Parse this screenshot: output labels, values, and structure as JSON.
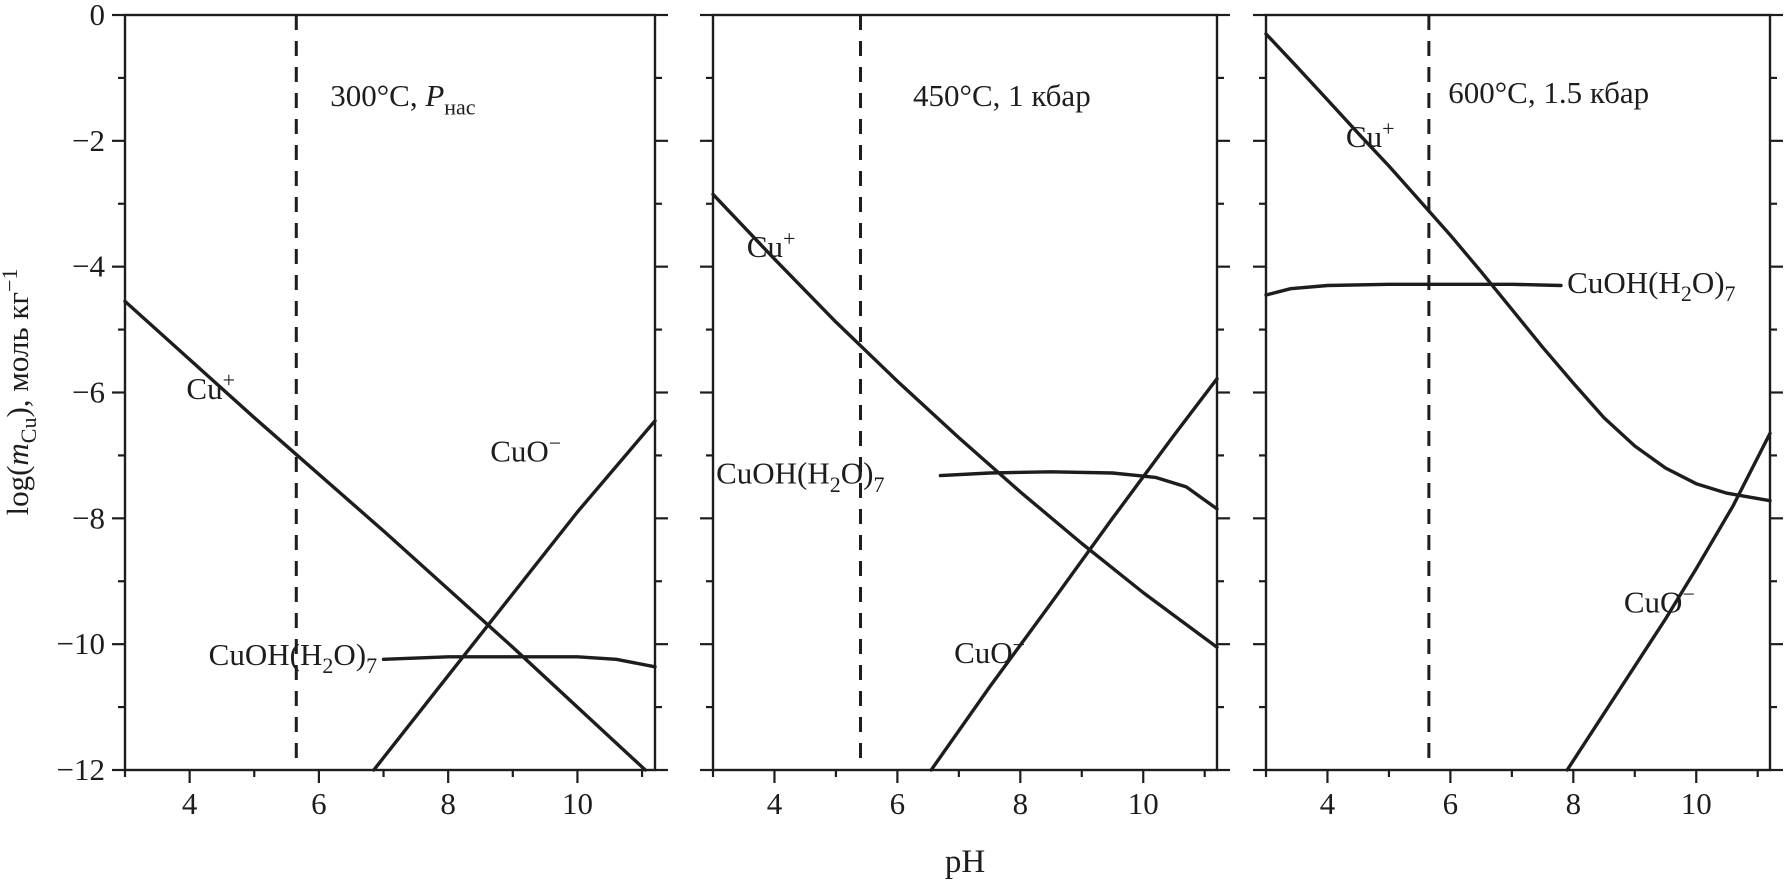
{
  "figure": {
    "background": "#ffffff",
    "line_color": "#1d1d1d",
    "x_axis_label": "pH",
    "y_axis_label_plain": "log(mCu), моль кг−1",
    "y_axis_label_parts": [
      [
        "log(",
        "n"
      ],
      [
        "m",
        "i"
      ],
      [
        "Cu",
        "sub"
      ],
      [
        "), моль кг",
        "n"
      ],
      [
        "−1",
        "sup"
      ]
    ]
  },
  "chart_data": {
    "type": "line",
    "xlabel": "pH",
    "ylabel": "log(m_Cu), моль кг^-1",
    "xlim": [
      3,
      11.2
    ],
    "ylim": [
      -12,
      0
    ],
    "grid": false,
    "legend": "none (labels placed next to curves)",
    "xticks": {
      "values": [
        4,
        6,
        8,
        10
      ],
      "labels": [
        "4",
        "6",
        "8",
        "10"
      ]
    },
    "yticks": {
      "values": [
        0,
        -2,
        -4,
        -6,
        -8,
        -10,
        -12
      ],
      "labels": [
        "0",
        "−2",
        "−4",
        "−6",
        "−8",
        "−10",
        "−12"
      ]
    },
    "panels": [
      {
        "title_plain": "300°C, Pнас",
        "title_parts": [
          [
            "300°C, ",
            "n"
          ],
          [
            "P",
            "i"
          ],
          [
            "нас",
            "sub"
          ]
        ],
        "title_x": 7.3,
        "title_y": -1.45,
        "dashed_x": 5.65,
        "series": [
          {
            "name": "Cu⁺",
            "slug": "cu-plus",
            "points": [
              [
                3,
                -4.55
              ],
              [
                5,
                -6.4
              ],
              [
                7,
                -8.2
              ],
              [
                9,
                -10.05
              ],
              [
                11.05,
                -12
              ]
            ]
          },
          {
            "name": "CuO⁻",
            "slug": "cuo-minus",
            "points": [
              [
                6.85,
                -12
              ],
              [
                8,
                -10.5
              ],
              [
                9,
                -9.2
              ],
              [
                10,
                -7.9
              ],
              [
                11.2,
                -6.45
              ]
            ]
          },
          {
            "name": "CuOH(H₂O)₇",
            "slug": "cuoh-h2o-7",
            "points": [
              [
                7.0,
                -10.24
              ],
              [
                8,
                -10.2
              ],
              [
                9,
                -10.2
              ],
              [
                10,
                -10.2
              ],
              [
                10.6,
                -10.24
              ],
              [
                11.2,
                -10.36
              ]
            ]
          }
        ],
        "labels": [
          {
            "slug": "cu-plus",
            "parts": [
              [
                "Cu",
                "n"
              ],
              [
                "+",
                "sup"
              ]
            ],
            "x": 3.95,
            "y": -6.1,
            "anchor": "start"
          },
          {
            "slug": "cuo-minus",
            "parts": [
              [
                "CuO",
                "n"
              ],
              [
                "−",
                "sup"
              ]
            ],
            "x": 9.2,
            "y": -7.1,
            "anchor": "middle"
          },
          {
            "slug": "cuoh-h2o-7",
            "parts": [
              [
                "CuOH(H",
                "n"
              ],
              [
                "2",
                "sub"
              ],
              [
                "O)",
                "n"
              ],
              [
                "7",
                "sub"
              ]
            ],
            "x": 6.9,
            "y": -10.33,
            "anchor": "end"
          }
        ]
      },
      {
        "title_plain": "450°C, 1 кбар",
        "title_parts": [
          [
            "450°C, 1 кбар",
            "n"
          ]
        ],
        "title_x": 7.7,
        "title_y": -1.45,
        "dashed_x": 5.4,
        "series": [
          {
            "name": "Cu⁺",
            "slug": "cu-plus",
            "points": [
              [
                3,
                -2.85
              ],
              [
                4,
                -3.88
              ],
              [
                5,
                -4.88
              ],
              [
                6,
                -5.82
              ],
              [
                7,
                -6.72
              ],
              [
                8,
                -7.58
              ],
              [
                9,
                -8.4
              ],
              [
                10,
                -9.18
              ],
              [
                11.2,
                -10.05
              ]
            ]
          },
          {
            "name": "CuOH(H₂O)₇",
            "slug": "cuoh-h2o-7",
            "points": [
              [
                6.7,
                -7.32
              ],
              [
                7.5,
                -7.28
              ],
              [
                8.5,
                -7.26
              ],
              [
                9.5,
                -7.28
              ],
              [
                10.2,
                -7.35
              ],
              [
                10.7,
                -7.5
              ],
              [
                11.2,
                -7.85
              ]
            ]
          },
          {
            "name": "CuO⁻",
            "slug": "cuo-minus",
            "points": [
              [
                6.55,
                -12
              ],
              [
                7.5,
                -10.68
              ],
              [
                8.5,
                -9.35
              ],
              [
                9.5,
                -8.0
              ],
              [
                10.5,
                -6.68
              ],
              [
                11.2,
                -5.78
              ]
            ]
          }
        ],
        "labels": [
          {
            "slug": "cu-plus",
            "parts": [
              [
                "Cu",
                "n"
              ],
              [
                "+",
                "sup"
              ]
            ],
            "x": 3.55,
            "y": -3.85,
            "anchor": "start"
          },
          {
            "slug": "cuoh-h2o-7",
            "parts": [
              [
                "CuOH(H",
                "n"
              ],
              [
                "2",
                "sub"
              ],
              [
                "O)",
                "n"
              ],
              [
                "7",
                "sub"
              ]
            ],
            "x": 3.05,
            "y": -7.45,
            "anchor": "start"
          },
          {
            "slug": "cuo-minus",
            "parts": [
              [
                "CuO",
                "n"
              ],
              [
                "−",
                "sup"
              ]
            ],
            "x": 7.5,
            "y": -10.3,
            "anchor": "middle"
          }
        ]
      },
      {
        "title_plain": "600°C, 1.5 кбар",
        "title_parts": [
          [
            "600°C, 1.5 кбар",
            "n"
          ]
        ],
        "title_x": 7.6,
        "title_y": -1.4,
        "dashed_x": 5.65,
        "series": [
          {
            "name": "Cu⁺",
            "slug": "cu-plus",
            "points": [
              [
                3,
                -0.3
              ],
              [
                3.5,
                -0.82
              ],
              [
                4,
                -1.35
              ],
              [
                4.5,
                -1.88
              ],
              [
                5,
                -2.4
              ],
              [
                5.5,
                -2.95
              ],
              [
                6,
                -3.5
              ],
              [
                6.5,
                -4.08
              ],
              [
                7,
                -4.68
              ],
              [
                7.5,
                -5.28
              ],
              [
                8,
                -5.85
              ],
              [
                8.5,
                -6.4
              ],
              [
                9,
                -6.85
              ],
              [
                9.5,
                -7.2
              ],
              [
                10,
                -7.45
              ],
              [
                10.5,
                -7.6
              ],
              [
                11.2,
                -7.72
              ]
            ]
          },
          {
            "name": "CuOH(H₂O)₇",
            "slug": "cuoh-h2o-7",
            "points": [
              [
                3,
                -4.45
              ],
              [
                3.4,
                -4.35
              ],
              [
                4,
                -4.3
              ],
              [
                5,
                -4.28
              ],
              [
                6,
                -4.28
              ],
              [
                7,
                -4.28
              ],
              [
                7.8,
                -4.3
              ]
            ]
          },
          {
            "name": "CuO⁻",
            "slug": "cuo-minus",
            "points": [
              [
                7.9,
                -12
              ],
              [
                8.5,
                -11.1
              ],
              [
                9,
                -10.35
              ],
              [
                9.5,
                -9.6
              ],
              [
                10,
                -8.8
              ],
              [
                10.6,
                -7.8
              ],
              [
                11.2,
                -6.65
              ]
            ]
          }
        ],
        "labels": [
          {
            "slug": "cu-plus",
            "parts": [
              [
                "Cu",
                "n"
              ],
              [
                "+",
                "sup"
              ]
            ],
            "x": 4.3,
            "y": -2.1,
            "anchor": "start"
          },
          {
            "slug": "cuoh-h2o-7",
            "parts": [
              [
                "CuOH(H",
                "n"
              ],
              [
                "2",
                "sub"
              ],
              [
                "O)",
                "n"
              ],
              [
                "7",
                "sub"
              ]
            ],
            "x": 7.9,
            "y": -4.42,
            "anchor": "start"
          },
          {
            "slug": "cuo-minus",
            "parts": [
              [
                "CuO",
                "n"
              ],
              [
                "−",
                "sup"
              ]
            ],
            "x": 9.4,
            "y": -9.5,
            "anchor": "middle"
          }
        ]
      }
    ]
  }
}
